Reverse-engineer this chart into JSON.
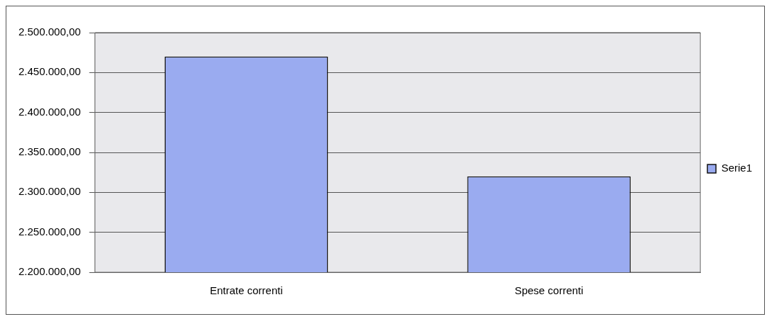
{
  "chart_data": {
    "type": "bar",
    "categories": [
      "Entrate correnti",
      "Spese correnti"
    ],
    "series": [
      {
        "name": "Serie1",
        "color": "#9aabf0",
        "values": [
          2470000,
          2320000
        ]
      }
    ],
    "ylim": [
      2200000,
      2500000
    ],
    "yticks": [
      {
        "value": 2200000,
        "label": "2.200.000,00"
      },
      {
        "value": 2250000,
        "label": "2.250.000,00"
      },
      {
        "value": 2300000,
        "label": "2.300.000,00"
      },
      {
        "value": 2350000,
        "label": "2.350.000,00"
      },
      {
        "value": 2400000,
        "label": "2.400.000,00"
      },
      {
        "value": 2450000,
        "label": "2.450.000,00"
      },
      {
        "value": 2500000,
        "label": "2.500.000,00"
      }
    ],
    "grid": "y",
    "legend": "right"
  }
}
